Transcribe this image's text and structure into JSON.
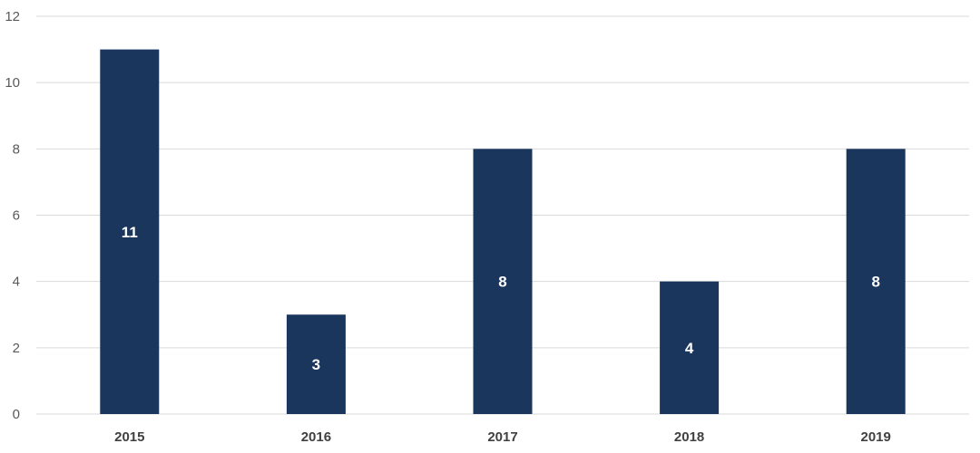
{
  "chart_data": {
    "type": "bar",
    "categories": [
      "2015",
      "2016",
      "2017",
      "2018",
      "2019"
    ],
    "values": [
      11,
      3,
      8,
      4,
      8
    ],
    "data_labels": [
      "11",
      "3",
      "8",
      "4",
      "8"
    ],
    "title": "",
    "xlabel": "",
    "ylabel": "",
    "ylim": [
      0,
      12
    ],
    "yticks": [
      0,
      2,
      4,
      6,
      8,
      10,
      12
    ],
    "grid": true,
    "legend": "none",
    "bar_color": "#1a365d",
    "data_label_color": "#ffffff"
  }
}
